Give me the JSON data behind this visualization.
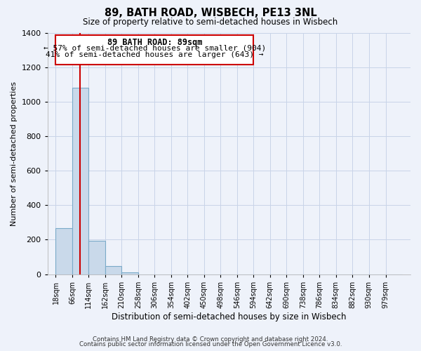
{
  "title": "89, BATH ROAD, WISBECH, PE13 3NL",
  "subtitle": "Size of property relative to semi-detached houses in Wisbech",
  "xlabel": "Distribution of semi-detached houses by size in Wisbech",
  "ylabel": "Number of semi-detached properties",
  "bin_labels": [
    "18sqm",
    "66sqm",
    "114sqm",
    "162sqm",
    "210sqm",
    "258sqm",
    "306sqm",
    "354sqm",
    "402sqm",
    "450sqm",
    "498sqm",
    "546sqm",
    "594sqm",
    "642sqm",
    "690sqm",
    "738sqm",
    "786sqm",
    "834sqm",
    "882sqm",
    "930sqm",
    "979sqm"
  ],
  "bin_values": [
    265,
    1080,
    195,
    48,
    10,
    0,
    0,
    0,
    0,
    0,
    0,
    0,
    0,
    0,
    0,
    0,
    0,
    0,
    0,
    0,
    0
  ],
  "bar_color": "#c9d9ea",
  "bar_edge_color": "#7aaac8",
  "grid_color": "#c8d4e8",
  "background_color": "#eef2fa",
  "vline_color": "#cc0000",
  "annotation_title": "89 BATH ROAD: 89sqm",
  "annotation_line1": "← 57% of semi-detached houses are smaller (904)",
  "annotation_line2": "41% of semi-detached houses are larger (643) →",
  "annotation_box_color": "white",
  "annotation_box_edge": "#cc0000",
  "ylim": [
    0,
    1400
  ],
  "yticks": [
    0,
    200,
    400,
    600,
    800,
    1000,
    1200,
    1400
  ],
  "footer_line1": "Contains HM Land Registry data © Crown copyright and database right 2024.",
  "footer_line2": "Contains public sector information licensed under the Open Government Licence v3.0.",
  "bin_edges": [
    18,
    66,
    114,
    162,
    210,
    258,
    306,
    354,
    402,
    450,
    498,
    546,
    594,
    642,
    690,
    738,
    786,
    834,
    882,
    930,
    979
  ],
  "bin_width": 48,
  "vline_x": 89
}
